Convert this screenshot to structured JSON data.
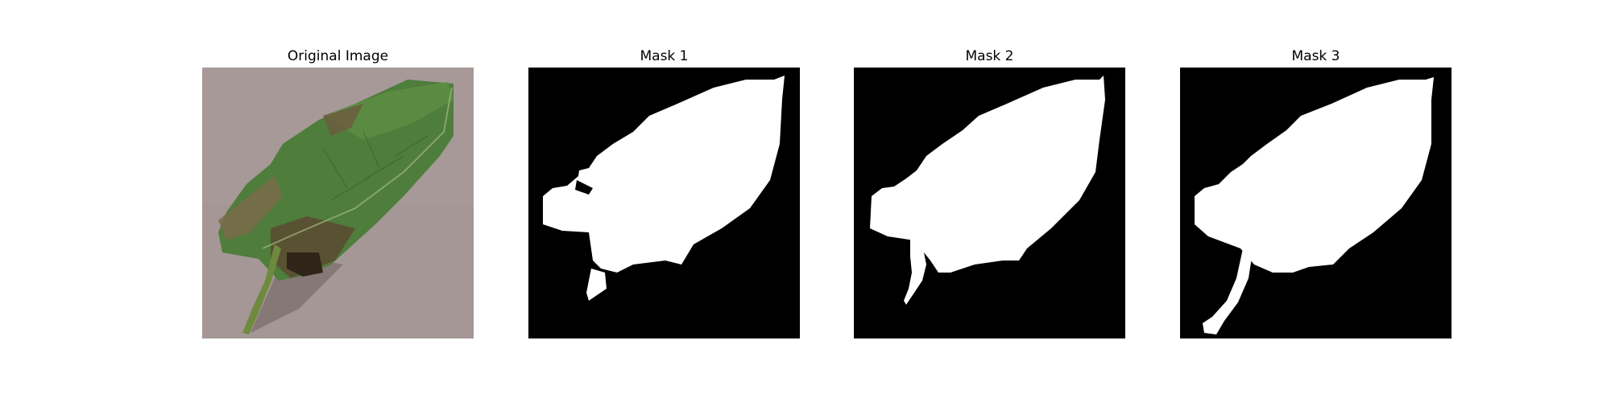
{
  "figure": {
    "panels": [
      {
        "title": "Original Image",
        "kind": "photo"
      },
      {
        "title": "Mask 1",
        "kind": "mask"
      },
      {
        "title": "Mask 2",
        "kind": "mask"
      },
      {
        "title": "Mask 3",
        "kind": "mask"
      }
    ],
    "colors": {
      "background": "#ffffff",
      "mask_foreground": "#ffffff",
      "mask_background": "#000000",
      "photo_surface": "#a49796",
      "leaf_green": "#4e7d3c",
      "leaf_brown": "#6d5a3e"
    }
  }
}
